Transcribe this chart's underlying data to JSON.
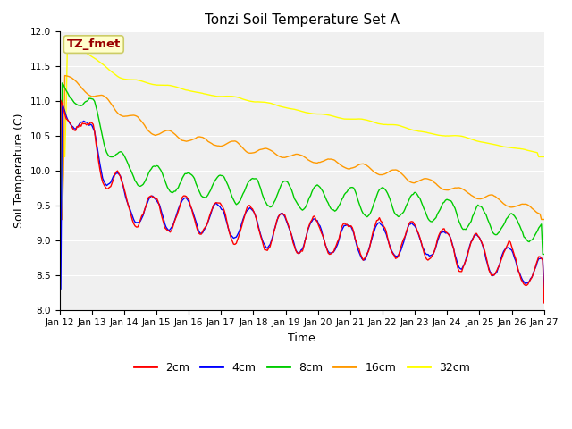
{
  "title": "Tonzi Soil Temperature Set A",
  "xlabel": "Time",
  "ylabel": "Soil Temperature (C)",
  "ylim": [
    8.0,
    12.0
  ],
  "yticks": [
    8.0,
    8.5,
    9.0,
    9.5,
    10.0,
    10.5,
    11.0,
    11.5,
    12.0
  ],
  "x_labels": [
    "Jan 12",
    "Jan 13",
    "Jan 14",
    "Jan 15",
    "Jan 16",
    "Jan 17",
    "Jan 18",
    "Jan 19",
    "Jan 20",
    "Jan 21",
    "Jan 22",
    "Jan 23",
    "Jan 24",
    "Jan 25",
    "Jan 26",
    "Jan 27"
  ],
  "annotation_text": "TZ_fmet",
  "annotation_bg": "#ffffcc",
  "annotation_fg": "#990000",
  "annotation_edge": "#cccc66",
  "bg_color": "#e8e8e8",
  "plot_bg": "#f0f0f0",
  "series_colors": [
    "#ff0000",
    "#0000ff",
    "#00cc00",
    "#ff9900",
    "#ffff00"
  ],
  "series_labels": [
    "2cm",
    "4cm",
    "8cm",
    "16cm",
    "32cm"
  ],
  "grid_color": "#ffffff",
  "title_fontsize": 11,
  "axis_label_fontsize": 9,
  "tick_fontsize": 7.5,
  "legend_fontsize": 9
}
